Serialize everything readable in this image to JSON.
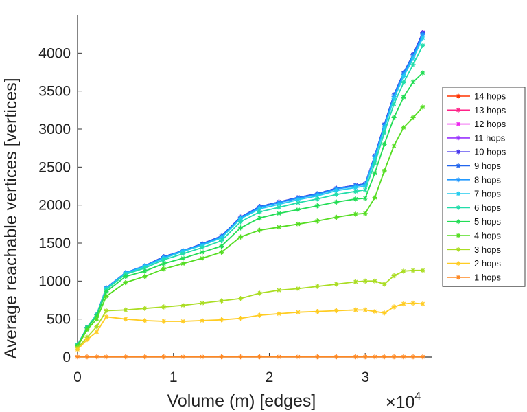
{
  "chart_data": {
    "type": "line",
    "xlabel": "Volume (m) [edges]",
    "ylabel": "Average reachable vertices [vertices]",
    "x_multiplier_base": "×10",
    "x_multiplier_exp": "4",
    "xlim": [
      0,
      3.7
    ],
    "ylim": [
      0,
      4500
    ],
    "xticks": [
      0,
      1,
      2,
      3
    ],
    "xtick_labels": [
      "0",
      "1",
      "2",
      "3"
    ],
    "yticks": [
      0,
      500,
      1000,
      1500,
      2000,
      2500,
      3000,
      3500,
      4000
    ],
    "ytick_labels": [
      "0",
      "500",
      "1000",
      "1500",
      "2000",
      "2500",
      "3000",
      "3500",
      "4000"
    ],
    "x": [
      0.0,
      0.1,
      0.2,
      0.3,
      0.5,
      0.7,
      0.9,
      1.1,
      1.3,
      1.5,
      1.7,
      1.9,
      2.1,
      2.3,
      2.5,
      2.7,
      2.9,
      3.0,
      3.1,
      3.2,
      3.3,
      3.4,
      3.5,
      3.6
    ],
    "series": [
      {
        "name": "14 hops",
        "color": "#ff3300",
        "values": [
          160,
          390,
          560,
          910,
          1110,
          1200,
          1320,
          1400,
          1490,
          1590,
          1840,
          1980,
          2040,
          2100,
          2150,
          2220,
          2260,
          2280,
          2650,
          3060,
          3450,
          3740,
          3980,
          4270
        ]
      },
      {
        "name": "13 hops",
        "color": "#ff2288",
        "values": [
          160,
          390,
          560,
          910,
          1110,
          1200,
          1320,
          1400,
          1490,
          1590,
          1840,
          1980,
          2040,
          2100,
          2150,
          2220,
          2260,
          2280,
          2650,
          3060,
          3450,
          3740,
          3980,
          4270
        ]
      },
      {
        "name": "12 hops",
        "color": "#ee22ee",
        "values": [
          160,
          390,
          560,
          910,
          1110,
          1200,
          1320,
          1400,
          1490,
          1590,
          1840,
          1980,
          2040,
          2100,
          2150,
          2220,
          2260,
          2280,
          2650,
          3060,
          3450,
          3740,
          3980,
          4270
        ]
      },
      {
        "name": "11 hops",
        "color": "#9933ff",
        "values": [
          160,
          390,
          560,
          910,
          1110,
          1200,
          1320,
          1400,
          1490,
          1590,
          1840,
          1980,
          2040,
          2100,
          2150,
          2220,
          2260,
          2280,
          2650,
          3060,
          3450,
          3740,
          3980,
          4270
        ]
      },
      {
        "name": "10 hops",
        "color": "#4433ee",
        "values": [
          160,
          390,
          560,
          910,
          1110,
          1200,
          1320,
          1400,
          1490,
          1590,
          1840,
          1980,
          2040,
          2100,
          2150,
          2220,
          2260,
          2280,
          2650,
          3060,
          3450,
          3740,
          3980,
          4270
        ]
      },
      {
        "name": "9 hops",
        "color": "#2266ee",
        "values": [
          160,
          390,
          560,
          910,
          1110,
          1200,
          1320,
          1400,
          1490,
          1590,
          1840,
          1980,
          2040,
          2100,
          2150,
          2220,
          2260,
          2280,
          2650,
          3060,
          3450,
          3740,
          3980,
          4260
        ]
      },
      {
        "name": "8 hops",
        "color": "#2299ff",
        "values": [
          160,
          390,
          560,
          910,
          1110,
          1200,
          1310,
          1400,
          1480,
          1580,
          1830,
          1970,
          2030,
          2090,
          2140,
          2210,
          2250,
          2270,
          2640,
          3040,
          3430,
          3720,
          3960,
          4240
        ]
      },
      {
        "name": "7 hops",
        "color": "#22ccee",
        "values": [
          160,
          390,
          560,
          900,
          1100,
          1190,
          1300,
          1390,
          1470,
          1570,
          1820,
          1950,
          2010,
          2070,
          2120,
          2190,
          2230,
          2250,
          2610,
          3010,
          3400,
          3690,
          3930,
          4200
        ]
      },
      {
        "name": "6 hops",
        "color": "#22ddaa",
        "values": [
          160,
          390,
          560,
          890,
          1090,
          1170,
          1280,
          1360,
          1440,
          1530,
          1780,
          1910,
          1970,
          2030,
          2080,
          2140,
          2180,
          2200,
          2550,
          2950,
          3330,
          3610,
          3850,
          4100
        ]
      },
      {
        "name": "5 hops",
        "color": "#22dd55",
        "values": [
          150,
          380,
          540,
          860,
          1060,
          1130,
          1230,
          1300,
          1380,
          1460,
          1700,
          1830,
          1890,
          1940,
          1990,
          2040,
          2080,
          2090,
          2420,
          2800,
          3150,
          3420,
          3620,
          3740
        ]
      },
      {
        "name": "4 hops",
        "color": "#55dd22",
        "values": [
          140,
          360,
          500,
          800,
          980,
          1060,
          1160,
          1230,
          1300,
          1380,
          1580,
          1670,
          1710,
          1750,
          1790,
          1840,
          1880,
          1890,
          2100,
          2450,
          2780,
          3020,
          3150,
          3290
        ]
      },
      {
        "name": "3 hops",
        "color": "#aadd22",
        "values": [
          120,
          260,
          400,
          610,
          620,
          640,
          660,
          680,
          710,
          740,
          770,
          840,
          880,
          900,
          930,
          960,
          990,
          1000,
          1000,
          960,
          1070,
          1130,
          1140,
          1140
        ]
      },
      {
        "name": "2 hops",
        "color": "#ffcc22",
        "values": [
          100,
          230,
          330,
          530,
          500,
          480,
          470,
          470,
          480,
          490,
          510,
          550,
          570,
          590,
          600,
          610,
          620,
          620,
          600,
          580,
          660,
          700,
          710,
          700
        ]
      },
      {
        "name": "1 hops",
        "color": "#ff8822",
        "values": [
          3,
          3,
          3,
          3,
          3,
          3,
          3,
          3,
          3,
          3,
          3,
          3,
          3,
          3,
          3,
          3,
          3,
          3,
          3,
          3,
          3,
          3,
          3,
          3
        ]
      }
    ],
    "legend_position": "right",
    "grid": false
  },
  "colors": {
    "axis": "#333333",
    "background": "#ffffff"
  }
}
